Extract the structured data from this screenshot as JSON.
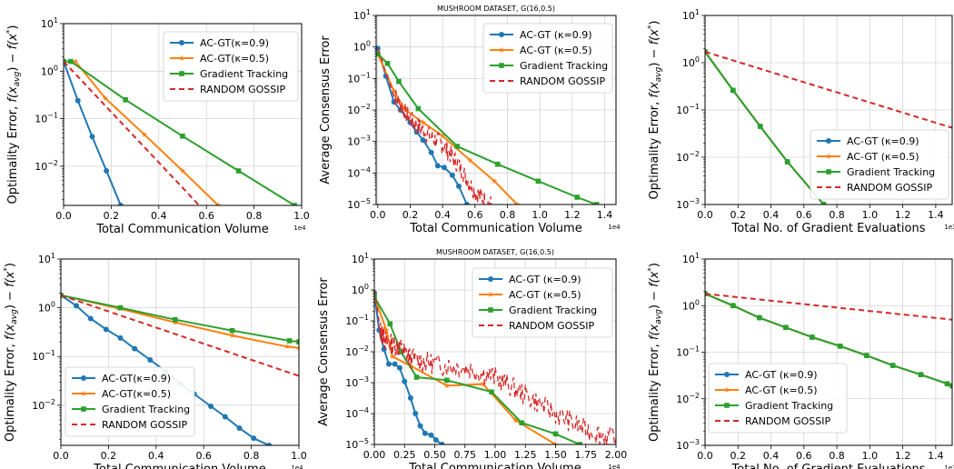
{
  "colors": {
    "ac09": "#1f77b4",
    "ac05": "#ff7f0e",
    "gt": "#2ca02c",
    "rg": "#d62728"
  },
  "chart_data": [
    {
      "type": "line",
      "title": "",
      "xlabel": "Total Communication Volume",
      "ylabel": "Optimality Error, f(x_avg) − f(x*)",
      "x_multiplier": "1e4",
      "xlim": [
        0,
        1.0
      ],
      "ylim": [
        0.0015,
        10
      ],
      "yscale": "log",
      "grid": true,
      "xticks": [
        "0.0",
        "0.2",
        "0.4",
        "0.6",
        "0.8",
        "1.0"
      ],
      "yticks": [
        "10^1",
        "10^0",
        "10^-1",
        "10^-2"
      ],
      "legend": "top-right",
      "series": [
        {
          "name": "AC-GT(κ=0.9)",
          "style": "ac09",
          "points": [
            [
              0,
              1.6
            ],
            [
              0.06,
              0.24
            ],
            [
              0.12,
              0.042
            ],
            [
              0.18,
              0.008
            ],
            [
              0.24,
              0.0015
            ]
          ]
        },
        {
          "name": "AC-GT(κ=0.5)",
          "style": "ac05",
          "points": [
            [
              0,
              1.6
            ],
            [
              0.05,
              1.6
            ],
            [
              0.175,
              0.27
            ],
            [
              0.34,
              0.046
            ],
            [
              0.5,
              0.008
            ],
            [
              0.65,
              0.0015
            ]
          ]
        },
        {
          "name": "Gradient Tracking",
          "style": "gt",
          "points": [
            [
              0,
              1.6
            ],
            [
              0.03,
              1.6
            ],
            [
              0.26,
              0.25
            ],
            [
              0.5,
              0.043
            ],
            [
              0.735,
              0.008
            ],
            [
              0.97,
              0.0015
            ]
          ]
        },
        {
          "name": "RANDOM GOSSIP",
          "style": "rg",
          "points": [
            [
              0,
              1.6
            ],
            [
              0.57,
              0.0015
            ]
          ]
        }
      ]
    },
    {
      "type": "line",
      "title": "MUSHROOM DATASET, G(16,0.5)",
      "xlabel": "Total Communication Volume",
      "ylabel": "Average Consensus Error",
      "x_multiplier": "1e4",
      "xlim": [
        -0.01,
        1.47
      ],
      "ylim": [
        1e-05,
        10
      ],
      "yscale": "log",
      "grid": true,
      "xticks": [
        "0.0",
        "0.2",
        "0.4",
        "0.6",
        "0.8",
        "1.0",
        "1.2",
        "1.4"
      ],
      "yticks": [
        "10^1",
        "10^0",
        "10^-1",
        "10^-2",
        "10^-3",
        "10^-4",
        "10^-5"
      ],
      "legend": "top-right",
      "series": [
        {
          "name": "AC-GT (κ=0.9)",
          "style": "ac09",
          "points": [
            [
              0,
              0.9
            ],
            [
              0.05,
              0.12
            ],
            [
              0.1,
              0.018
            ],
            [
              0.14,
              0.01
            ],
            [
              0.2,
              0.004
            ],
            [
              0.24,
              0.002
            ],
            [
              0.28,
              0.0011
            ],
            [
              0.33,
              0.00045
            ],
            [
              0.37,
              0.00017
            ],
            [
              0.41,
              0.00015
            ],
            [
              0.46,
              8.5e-05
            ],
            [
              0.5,
              3.8e-05
            ],
            [
              0.55,
              1e-05
            ]
          ]
        },
        {
          "name": "AC-GT (κ=0.5)",
          "style": "ac05",
          "points": [
            [
              0,
              0.6
            ],
            [
              0.1,
              0.04
            ],
            [
              0.17,
              0.01
            ],
            [
              0.28,
              0.004
            ],
            [
              0.4,
              0.0015
            ],
            [
              0.57,
              0.00025
            ],
            [
              0.72,
              5.5e-05
            ],
            [
              0.86,
              1e-05
            ]
          ]
        },
        {
          "name": "Gradient Tracking",
          "style": "gt",
          "points": [
            [
              0,
              0.6
            ],
            [
              0.06,
              0.3
            ],
            [
              0.13,
              0.08
            ],
            [
              0.25,
              0.011
            ],
            [
              0.49,
              0.0007
            ],
            [
              0.74,
              0.00019
            ],
            [
              0.99,
              5.5e-05
            ],
            [
              1.23,
              1.7e-05
            ],
            [
              1.35,
              1e-05
            ]
          ]
        },
        {
          "name": "RANDOM GOSSIP",
          "style": "rg",
          "points": [
            [
              0,
              0.9
            ],
            [
              0.1,
              0.03
            ],
            [
              0.2,
              0.005
            ],
            [
              0.3,
              0.0018
            ],
            [
              0.4,
              0.0008
            ],
            [
              0.5,
              0.00017
            ],
            [
              0.6,
              2.5e-05
            ],
            [
              0.7,
              1e-05
            ]
          ],
          "noisy": true,
          "noise_amp": 0.3,
          "noise_seed": 7
        }
      ]
    },
    {
      "type": "line",
      "title": "",
      "xlabel": "Total No. of Gradient Evaluations",
      "ylabel": "Optimality Error, f(x_avg) − f(x*)",
      "x_multiplier": "1e3",
      "xlim": [
        0,
        1.5
      ],
      "ylim": [
        0.001,
        10
      ],
      "yscale": "log",
      "grid": true,
      "xticks": [
        "0.0",
        "0.2",
        "0.4",
        "0.6",
        "0.8",
        "1.0",
        "1.2",
        "1.4"
      ],
      "yticks": [
        "10^1",
        "10^0",
        "10^-1",
        "10^-2",
        "10^-3"
      ],
      "legend": "lower-right",
      "series": [
        {
          "name": "AC-GT (κ=0.9)",
          "style": "ac09",
          "points": [
            [
              0,
              1.7
            ],
            [
              0.17,
              0.26
            ],
            [
              0.335,
              0.045
            ],
            [
              0.5,
              0.008
            ],
            [
              0.72,
              0.001
            ]
          ]
        },
        {
          "name": "AC-GT (κ=0.5)",
          "style": "ac05",
          "points": [
            [
              0,
              1.7
            ],
            [
              0.17,
              0.26
            ],
            [
              0.335,
              0.045
            ],
            [
              0.5,
              0.008
            ],
            [
              0.72,
              0.001
            ]
          ]
        },
        {
          "name": "Gradient Tracking",
          "style": "gt",
          "points": [
            [
              0,
              1.7
            ],
            [
              0.17,
              0.26
            ],
            [
              0.335,
              0.045
            ],
            [
              0.5,
              0.008
            ],
            [
              0.72,
              0.001
            ]
          ]
        },
        {
          "name": "RANDOM GOSSIP",
          "style": "rg",
          "points": [
            [
              0,
              1.7
            ],
            [
              1.5,
              0.042
            ]
          ]
        }
      ]
    },
    {
      "type": "line",
      "title": "",
      "xlabel": "Total Communication Volume",
      "ylabel": "Optimality Error, f(x_avg) − f(x*)",
      "x_multiplier": "1e4",
      "xlim": [
        0,
        1.0
      ],
      "ylim": [
        0.0015,
        10
      ],
      "yscale": "log",
      "grid": true,
      "xticks": [
        "0.0",
        "0.2",
        "0.4",
        "0.6",
        "0.8",
        "1.0"
      ],
      "yticks": [
        "10^1",
        "10^0",
        "10^-1",
        "10^-2"
      ],
      "legend": "lower-left",
      "series": [
        {
          "name": "AC-GT(κ=0.9)",
          "style": "ac09",
          "points": [
            [
              0,
              1.8
            ],
            [
              0.065,
              1.1
            ],
            [
              0.125,
              0.6
            ],
            [
              0.19,
              0.36
            ],
            [
              0.25,
              0.24
            ],
            [
              0.31,
              0.145
            ],
            [
              0.375,
              0.085
            ],
            [
              0.44,
              0.05
            ],
            [
              0.5,
              0.028
            ],
            [
              0.56,
              0.017
            ],
            [
              0.63,
              0.0095
            ],
            [
              0.69,
              0.0058
            ],
            [
              0.75,
              0.0034
            ],
            [
              0.81,
              0.0021
            ],
            [
              0.875,
              0.0015
            ]
          ]
        },
        {
          "name": "AC-GT(κ=0.5)",
          "style": "ac05",
          "points": [
            [
              0,
              1.8
            ],
            [
              0.24,
              0.98
            ],
            [
              0.48,
              0.5
            ],
            [
              0.72,
              0.27
            ],
            [
              0.95,
              0.16
            ],
            [
              1.0,
              0.15
            ]
          ]
        },
        {
          "name": "Gradient Tracking",
          "style": "gt",
          "points": [
            [
              0,
              1.8
            ],
            [
              0.25,
              1.0
            ],
            [
              0.48,
              0.57
            ],
            [
              0.72,
              0.34
            ],
            [
              0.96,
              0.21
            ],
            [
              1.0,
              0.2
            ]
          ]
        },
        {
          "name": "RANDOM GOSSIP",
          "style": "rg",
          "points": [
            [
              0,
              1.8
            ],
            [
              1.0,
              0.04
            ]
          ]
        }
      ]
    },
    {
      "type": "line",
      "title": "MUSHROOM DATASET, G(16,0.5)",
      "xlabel": "Total Communication Volume",
      "ylabel": "Average Consensus Error",
      "x_multiplier": "1e4",
      "xlim": [
        0,
        2.0
      ],
      "ylim": [
        1e-05,
        10
      ],
      "yscale": "log",
      "grid": true,
      "xticks": [
        "0.00",
        "0.25",
        "0.50",
        "0.75",
        "1.00",
        "1.25",
        "1.50",
        "1.75",
        "2.00"
      ],
      "yticks": [
        "10^1",
        "10^0",
        "10^-1",
        "10^-2",
        "10^-3",
        "10^-4",
        "10^-5"
      ],
      "legend": "top-right",
      "series": [
        {
          "name": "AC-GT (κ=0.9)",
          "style": "ac09",
          "points": [
            [
              0,
              0.8
            ],
            [
              0.04,
              0.05
            ],
            [
              0.08,
              0.012
            ],
            [
              0.12,
              0.004
            ],
            [
              0.17,
              0.004
            ],
            [
              0.21,
              0.003
            ],
            [
              0.25,
              0.0011
            ],
            [
              0.3,
              0.00032
            ],
            [
              0.34,
              0.0001
            ],
            [
              0.38,
              4e-05
            ],
            [
              0.42,
              2.3e-05
            ],
            [
              0.47,
              2e-05
            ],
            [
              0.51,
              1.4e-05
            ],
            [
              0.56,
              1e-05
            ]
          ]
        },
        {
          "name": "AC-GT (κ=0.5)",
          "style": "ac05",
          "points": [
            [
              0,
              0.6
            ],
            [
              0.1,
              0.05
            ],
            [
              0.15,
              0.007
            ],
            [
              0.3,
              0.0035
            ],
            [
              0.6,
              0.0008
            ],
            [
              0.9,
              0.0009
            ],
            [
              1.17,
              6e-05
            ],
            [
              1.5,
              1e-05
            ]
          ]
        },
        {
          "name": "Gradient Tracking",
          "style": "gt",
          "points": [
            [
              0,
              0.6
            ],
            [
              0.13,
              0.08
            ],
            [
              0.22,
              0.01
            ],
            [
              0.35,
              0.0015
            ],
            [
              0.6,
              0.0012
            ],
            [
              0.97,
              0.0005
            ],
            [
              1.22,
              5e-05
            ],
            [
              1.5,
              2.2e-05
            ],
            [
              1.7,
              1e-05
            ]
          ]
        },
        {
          "name": "RANDOM GOSSIP",
          "style": "rg",
          "points": [
            [
              0,
              1.0
            ],
            [
              0.05,
              0.05
            ],
            [
              0.1,
              0.02
            ],
            [
              0.2,
              0.015
            ],
            [
              0.3,
              0.006
            ],
            [
              0.5,
              0.004
            ],
            [
              0.75,
              0.003
            ],
            [
              1.0,
              0.0015
            ],
            [
              1.25,
              0.0004
            ],
            [
              1.5,
              0.0001
            ],
            [
              1.75,
              3e-05
            ],
            [
              2.0,
              1.5e-05
            ]
          ],
          "noisy": true,
          "noise_amp": 0.35,
          "noise_seed": 13
        }
      ]
    },
    {
      "type": "line",
      "title": "",
      "xlabel": "Total No. of Gradient Evaluations",
      "ylabel": "Optimality Error, f(x_avg) − f(x*)",
      "x_multiplier": "1e3",
      "xlim": [
        0,
        1.5
      ],
      "ylim": [
        0.001,
        10
      ],
      "yscale": "log",
      "grid": true,
      "xticks": [
        "0.0",
        "0.2",
        "0.4",
        "0.6",
        "0.8",
        "1.0",
        "1.2",
        "1.4"
      ],
      "yticks": [
        "10^1",
        "10^0",
        "10^-1",
        "10^-2",
        "10^-3"
      ],
      "legend": "lower-left",
      "series": [
        {
          "name": "AC-GT (κ=0.9)",
          "style": "ac09",
          "points": [
            [
              0,
              1.8
            ],
            [
              0.17,
              1.0
            ],
            [
              0.33,
              0.55
            ],
            [
              0.49,
              0.34
            ],
            [
              0.65,
              0.21
            ],
            [
              0.82,
              0.135
            ],
            [
              0.98,
              0.085
            ],
            [
              1.14,
              0.052
            ],
            [
              1.31,
              0.033
            ],
            [
              1.47,
              0.021
            ],
            [
              1.5,
              0.019
            ]
          ]
        },
        {
          "name": "AC-GT (κ=0.5)",
          "style": "ac05",
          "points": [
            [
              0,
              1.8
            ],
            [
              0.17,
              1.0
            ],
            [
              0.33,
              0.55
            ],
            [
              0.49,
              0.34
            ],
            [
              0.65,
              0.21
            ],
            [
              0.82,
              0.135
            ],
            [
              0.98,
              0.085
            ],
            [
              1.14,
              0.052
            ],
            [
              1.31,
              0.033
            ],
            [
              1.47,
              0.021
            ],
            [
              1.5,
              0.019
            ]
          ]
        },
        {
          "name": "Gradient Tracking",
          "style": "gt",
          "points": [
            [
              0,
              1.8
            ],
            [
              0.17,
              1.0
            ],
            [
              0.33,
              0.55
            ],
            [
              0.49,
              0.34
            ],
            [
              0.65,
              0.21
            ],
            [
              0.82,
              0.135
            ],
            [
              0.98,
              0.085
            ],
            [
              1.14,
              0.052
            ],
            [
              1.31,
              0.033
            ],
            [
              1.47,
              0.021
            ],
            [
              1.5,
              0.019
            ]
          ]
        },
        {
          "name": "RANDOM GOSSIP",
          "style": "rg",
          "points": [
            [
              0,
              1.8
            ],
            [
              1.5,
              0.5
            ]
          ]
        }
      ]
    }
  ]
}
